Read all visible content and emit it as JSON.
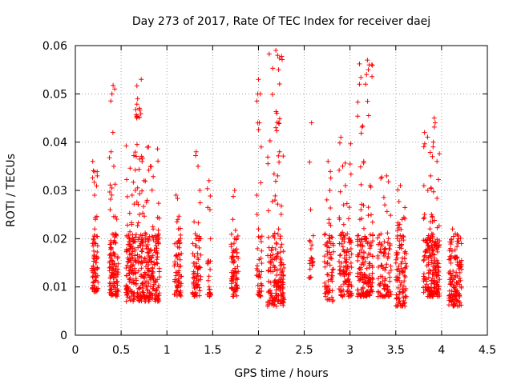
{
  "chart_data": {
    "type": "scatter",
    "title": "Day 273 of 2017, Rate Of TEC Index for receiver daej",
    "xlabel": "GPS time / hours",
    "ylabel": "ROTI / TECUs",
    "xlim": [
      0,
      4.5
    ],
    "ylim": [
      0,
      0.06
    ],
    "grid": true,
    "marker": "+",
    "color": "#ff0000",
    "x_ticks": [
      0,
      0.5,
      1,
      1.5,
      2,
      2.5,
      3,
      3.5,
      4,
      4.5
    ],
    "x_tick_labels": [
      "0",
      "0.5",
      "1",
      "1.5",
      "2",
      "2.5",
      "3",
      "3.5",
      "4",
      "4.5"
    ],
    "y_ticks": [
      0,
      0.01,
      0.02,
      0.03,
      0.04,
      0.05,
      0.06
    ],
    "y_tick_labels": [
      "0",
      "0.01",
      "0.02",
      "0.03",
      "0.04",
      "0.05",
      "0.06"
    ],
    "clusters": [
      {
        "x": [
          0.18,
          0.25
        ],
        "y": [
          0.009,
          0.036
        ],
        "n": 70
      },
      {
        "x": [
          0.37,
          0.47
        ],
        "y": [
          0.008,
          0.052
        ],
        "n": 110
      },
      {
        "x": [
          0.55,
          0.92
        ],
        "y": [
          0.007,
          0.04
        ],
        "n": 380
      },
      {
        "x": [
          0.65,
          0.72
        ],
        "y": [
          0.045,
          0.054
        ],
        "n": 10
      },
      {
        "x": [
          1.08,
          1.16
        ],
        "y": [
          0.008,
          0.029
        ],
        "n": 60
      },
      {
        "x": [
          1.28,
          1.38
        ],
        "y": [
          0.008,
          0.038
        ],
        "n": 70
      },
      {
        "x": [
          1.44,
          1.48
        ],
        "y": [
          0.008,
          0.032
        ],
        "n": 20
      },
      {
        "x": [
          1.7,
          1.78
        ],
        "y": [
          0.008,
          0.03
        ],
        "n": 70
      },
      {
        "x": [
          1.98,
          2.04
        ],
        "y": [
          0.008,
          0.053
        ],
        "n": 40
      },
      {
        "x": [
          2.1,
          2.28
        ],
        "y": [
          0.006,
          0.059
        ],
        "n": 170
      },
      {
        "x": [
          2.55,
          2.6
        ],
        "y": [
          0.011,
          0.044
        ],
        "n": 20
      },
      {
        "x": [
          2.72,
          2.82
        ],
        "y": [
          0.007,
          0.036
        ],
        "n": 70
      },
      {
        "x": [
          2.88,
          3.02
        ],
        "y": [
          0.008,
          0.041
        ],
        "n": 120
      },
      {
        "x": [
          3.08,
          3.25
        ],
        "y": [
          0.008,
          0.058
        ],
        "n": 170
      },
      {
        "x": [
          3.3,
          3.45
        ],
        "y": [
          0.008,
          0.033
        ],
        "n": 90
      },
      {
        "x": [
          3.5,
          3.62
        ],
        "y": [
          0.006,
          0.031
        ],
        "n": 100
      },
      {
        "x": [
          3.8,
          3.98
        ],
        "y": [
          0.008,
          0.045
        ],
        "n": 200
      },
      {
        "x": [
          4.08,
          4.22
        ],
        "y": [
          0.006,
          0.022
        ],
        "n": 130
      }
    ],
    "points_estimated": [
      [
        0.19,
        0.036
      ],
      [
        0.21,
        0.029
      ],
      [
        0.22,
        0.024
      ],
      [
        0.2,
        0.016
      ],
      [
        0.23,
        0.012
      ],
      [
        0.21,
        0.009
      ],
      [
        0.24,
        0.033
      ],
      [
        0.22,
        0.019
      ],
      [
        0.4,
        0.05
      ],
      [
        0.43,
        0.051
      ],
      [
        0.41,
        0.042
      ],
      [
        0.39,
        0.038
      ],
      [
        0.42,
        0.035
      ],
      [
        0.38,
        0.026
      ],
      [
        0.44,
        0.021
      ],
      [
        0.4,
        0.013
      ],
      [
        0.42,
        0.01
      ],
      [
        0.68,
        0.049
      ],
      [
        0.7,
        0.047
      ],
      [
        0.72,
        0.053
      ],
      [
        0.67,
        0.045
      ],
      [
        0.8,
        0.039
      ],
      [
        0.82,
        0.035
      ],
      [
        0.75,
        0.032
      ],
      [
        0.62,
        0.029
      ],
      [
        0.7,
        0.025
      ],
      [
        0.85,
        0.022
      ],
      [
        0.6,
        0.018
      ],
      [
        0.78,
        0.015
      ],
      [
        0.66,
        0.013
      ],
      [
        0.88,
        0.011
      ],
      [
        0.73,
        0.009
      ],
      [
        0.9,
        0.007
      ],
      [
        1.1,
        0.029
      ],
      [
        1.12,
        0.024
      ],
      [
        1.14,
        0.019
      ],
      [
        1.11,
        0.013
      ],
      [
        1.13,
        0.009
      ],
      [
        1.32,
        0.038
      ],
      [
        1.34,
        0.035
      ],
      [
        1.36,
        0.03
      ],
      [
        1.31,
        0.021
      ],
      [
        1.35,
        0.014
      ],
      [
        1.33,
        0.01
      ],
      [
        1.46,
        0.032
      ],
      [
        1.47,
        0.026
      ],
      [
        1.45,
        0.015
      ],
      [
        1.46,
        0.01
      ],
      [
        1.74,
        0.03
      ],
      [
        1.72,
        0.024
      ],
      [
        1.76,
        0.02
      ],
      [
        1.73,
        0.015
      ],
      [
        1.75,
        0.009
      ],
      [
        2.0,
        0.053
      ],
      [
        2.02,
        0.05
      ],
      [
        2.01,
        0.044
      ],
      [
        2.03,
        0.039
      ],
      [
        2.0,
        0.022
      ],
      [
        2.02,
        0.012
      ],
      [
        2.01,
        0.009
      ],
      [
        2.19,
        0.059
      ],
      [
        2.21,
        0.058
      ],
      [
        2.22,
        0.055
      ],
      [
        2.2,
        0.046
      ],
      [
        2.19,
        0.043
      ],
      [
        2.23,
        0.038
      ],
      [
        2.21,
        0.033
      ],
      [
        2.18,
        0.028
      ],
      [
        2.22,
        0.022
      ],
      [
        2.24,
        0.016
      ],
      [
        2.19,
        0.011
      ],
      [
        2.21,
        0.007
      ],
      [
        2.58,
        0.044
      ],
      [
        2.57,
        0.026
      ],
      [
        2.58,
        0.016
      ],
      [
        2.57,
        0.012
      ],
      [
        2.76,
        0.036
      ],
      [
        2.78,
        0.03
      ],
      [
        2.77,
        0.024
      ],
      [
        2.79,
        0.016
      ],
      [
        2.75,
        0.01
      ],
      [
        2.9,
        0.041
      ],
      [
        2.92,
        0.035
      ],
      [
        2.95,
        0.031
      ],
      [
        2.93,
        0.027
      ],
      [
        2.97,
        0.021
      ],
      [
        2.94,
        0.016
      ],
      [
        2.96,
        0.011
      ],
      [
        3.19,
        0.057
      ],
      [
        3.21,
        0.056
      ],
      [
        3.2,
        0.055
      ],
      [
        3.18,
        0.054
      ],
      [
        3.17,
        0.052
      ],
      [
        3.15,
        0.036
      ],
      [
        3.22,
        0.031
      ],
      [
        3.12,
        0.026
      ],
      [
        3.18,
        0.02
      ],
      [
        3.14,
        0.015
      ],
      [
        3.2,
        0.011
      ],
      [
        3.4,
        0.033
      ],
      [
        3.38,
        0.027
      ],
      [
        3.42,
        0.02
      ],
      [
        3.39,
        0.014
      ],
      [
        3.41,
        0.01
      ],
      [
        3.55,
        0.031
      ],
      [
        3.57,
        0.024
      ],
      [
        3.56,
        0.018
      ],
      [
        3.58,
        0.013
      ],
      [
        3.6,
        0.006
      ],
      [
        3.92,
        0.045
      ],
      [
        3.93,
        0.044
      ],
      [
        3.91,
        0.04
      ],
      [
        3.9,
        0.037
      ],
      [
        3.88,
        0.033
      ],
      [
        3.95,
        0.036
      ],
      [
        3.85,
        0.03
      ],
      [
        3.89,
        0.025
      ],
      [
        3.87,
        0.02
      ],
      [
        3.92,
        0.016
      ],
      [
        3.86,
        0.012
      ],
      [
        3.9,
        0.009
      ],
      [
        4.12,
        0.022
      ],
      [
        4.15,
        0.021
      ],
      [
        4.18,
        0.02
      ],
      [
        4.14,
        0.016
      ],
      [
        4.16,
        0.013
      ],
      [
        4.13,
        0.01
      ],
      [
        4.11,
        0.007
      ]
    ]
  }
}
